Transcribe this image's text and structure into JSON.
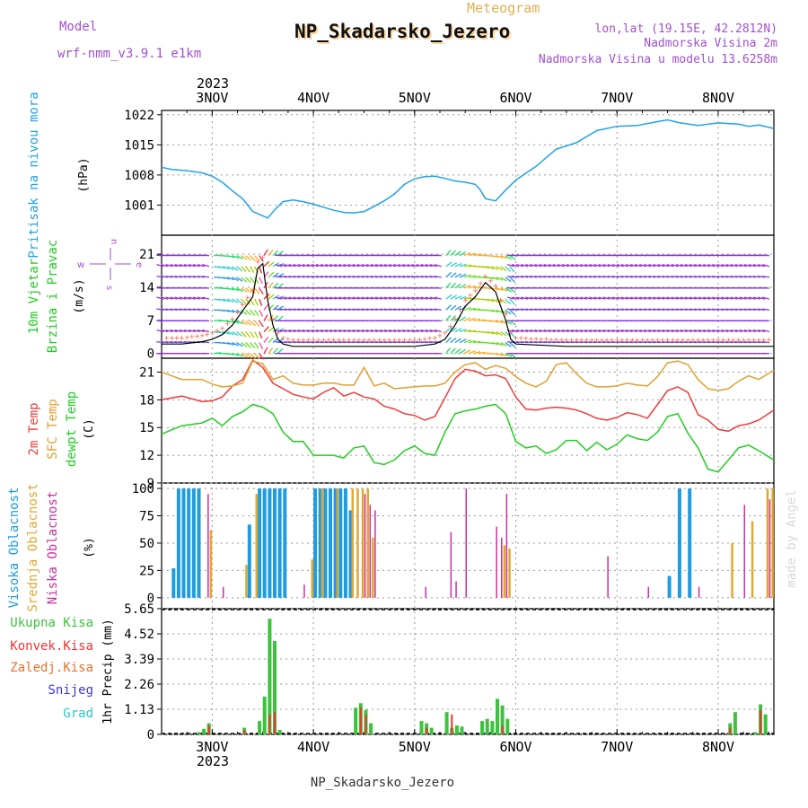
{
  "header": {
    "title": "NP_Skadarsko_Jezero",
    "subtitle": "Meteogram",
    "model_label": "Model",
    "model_name": "wrf-nmm_v3.9.1 e1km",
    "coords": "lon,lat (19.15E, 42.2812N)",
    "altitude": "Nadmorska Visina 2m",
    "model_altitude": "Nadmorska Visina u modelu 13.6258m",
    "watermark": "made by Angel",
    "footer": "NP_Skadarsko_Jezero"
  },
  "colors": {
    "pressure": "#22a2e8",
    "wind_black": "#000000",
    "t2m": "#ef3b3b",
    "sfc": "#e0a030",
    "dewpt": "#22cc22",
    "high_cloud": "#1f9be0",
    "mid_cloud": "#e0a830",
    "low_cloud": "#cc2f9e",
    "total_precip": "#3cc23c",
    "conv_precip": "#ee3333",
    "frz_precip": "#e8732a",
    "snow": "#3a3acc",
    "hail": "#28c8c8",
    "purple_label": "#a050d0",
    "gold_label": "#e0b050"
  },
  "x_axis": {
    "year": "2023",
    "ticks": [
      {
        "day": 3,
        "label": "3NOV"
      },
      {
        "day": 4,
        "label": "4NOV"
      },
      {
        "day": 5,
        "label": "5NOV"
      },
      {
        "day": 6,
        "label": "6NOV"
      },
      {
        "day": 7,
        "label": "7NOV"
      },
      {
        "day": 8,
        "label": "8NOV"
      }
    ]
  },
  "panels": {
    "pressure": {
      "ylabel_left": "Pritisak na nivou mora",
      "unit": "(hPa)",
      "ticks": [
        1001,
        1008,
        1015,
        1022
      ]
    },
    "wind": {
      "ylabel_left_1": "10m Vjetar",
      "ylabel_left_2": "Brzina i Pravac",
      "unit": "(m/s)",
      "ticks": [
        0,
        7,
        14,
        21
      ],
      "compass_w": "w",
      "compass_n": "n",
      "compass_e": "e",
      "compass_s": "s"
    },
    "temperature": {
      "label_t2m": "2m Temp",
      "label_sfc": "SFC Temp",
      "label_dew": "dewpt Temp",
      "unit": "(C)",
      "ticks": [
        9,
        12,
        15,
        18,
        21
      ]
    },
    "clouds": {
      "label_high": "Visoka Oblacnost",
      "label_mid": "Srednja Oblacnost",
      "label_low": "Niska Oblacnost",
      "unit": "(%)",
      "ticks": [
        0,
        25,
        50,
        75,
        100
      ]
    },
    "precip": {
      "label_total": "Ukupna Kisa",
      "label_conv": "Konvek.Kisa",
      "label_frz": "Zaledj.Kisa",
      "label_snow": "Snijeg",
      "label_hail": "Grad",
      "unit": "1hr Precip (mm)",
      "ticks": [
        0,
        1.13,
        2.26,
        3.39,
        4.52,
        5.65
      ]
    }
  },
  "chart_data": [
    {
      "type": "line",
      "name": "pressure",
      "x_unit": "day of November 2023",
      "xlim": [
        2.5,
        8.55
      ],
      "ylim": [
        994,
        1023
      ],
      "x": [
        2.5,
        2.6,
        2.75,
        2.9,
        3.0,
        3.1,
        3.2,
        3.3,
        3.4,
        3.5,
        3.55,
        3.62,
        3.7,
        3.8,
        3.9,
        4.0,
        4.1,
        4.2,
        4.3,
        4.4,
        4.5,
        4.6,
        4.7,
        4.8,
        4.9,
        5.0,
        5.1,
        5.2,
        5.3,
        5.4,
        5.5,
        5.6,
        5.65,
        5.7,
        5.8,
        5.9,
        6.0,
        6.2,
        6.4,
        6.6,
        6.8,
        7.0,
        7.2,
        7.4,
        7.5,
        7.6,
        7.8,
        8.0,
        8.2,
        8.3,
        8.4,
        8.55
      ],
      "values": [
        1009.8,
        1009.3,
        1009.0,
        1008.5,
        1007.7,
        1006.3,
        1004.3,
        1002.5,
        999.5,
        998.5,
        998.0,
        1000.0,
        1001.8,
        1002.2,
        1001.8,
        1001.2,
        1000.5,
        999.8,
        999.3,
        999.2,
        999.5,
        1000.7,
        1002.0,
        1003.6,
        1005.8,
        1007.1,
        1007.6,
        1007.7,
        1007.2,
        1006.6,
        1006.3,
        1005.8,
        1004.5,
        1002.5,
        1002.0,
        1004.5,
        1006.8,
        1010.0,
        1014.0,
        1015.5,
        1018.3,
        1019.3,
        1019.5,
        1020.4,
        1020.8,
        1020.2,
        1019.5,
        1020.1,
        1019.8,
        1019.3,
        1019.6,
        1018.8
      ]
    },
    {
      "type": "line",
      "name": "wind_speed",
      "x_unit": "day of November 2023",
      "ylim": [
        -1,
        25
      ],
      "x": [
        2.5,
        2.7,
        2.9,
        3.0,
        3.1,
        3.2,
        3.3,
        3.4,
        3.45,
        3.5,
        3.55,
        3.6,
        3.65,
        3.7,
        3.8,
        3.9,
        4.0,
        4.5,
        5.0,
        5.2,
        5.3,
        5.4,
        5.5,
        5.6,
        5.7,
        5.8,
        5.85,
        5.9,
        5.95,
        6.0,
        6.5,
        7.0,
        7.5,
        8.0,
        8.55
      ],
      "values": [
        2,
        2,
        2.5,
        3,
        4,
        6,
        9,
        12,
        18,
        19,
        11,
        6,
        3,
        2,
        1.5,
        1.5,
        1.5,
        1.5,
        1.5,
        2,
        3,
        6,
        10,
        12,
        15,
        13,
        10,
        7,
        3,
        2,
        1.5,
        1.5,
        1.5,
        1.5,
        1.5
      ]
    },
    {
      "type": "line",
      "name": "temperature",
      "x_unit": "day of November 2023",
      "ylim": [
        9,
        22.5
      ],
      "x": [
        2.5,
        2.7,
        2.9,
        3.0,
        3.1,
        3.2,
        3.3,
        3.4,
        3.5,
        3.6,
        3.7,
        3.8,
        3.9,
        4.0,
        4.1,
        4.2,
        4.3,
        4.4,
        4.5,
        4.6,
        4.7,
        4.8,
        4.9,
        5.0,
        5.1,
        5.2,
        5.3,
        5.4,
        5.5,
        5.6,
        5.7,
        5.8,
        5.9,
        6.0,
        6.1,
        6.2,
        6.3,
        6.4,
        6.5,
        6.6,
        6.7,
        6.8,
        6.9,
        7.0,
        7.1,
        7.2,
        7.3,
        7.4,
        7.5,
        7.6,
        7.7,
        7.8,
        7.9,
        8.0,
        8.1,
        8.2,
        8.3,
        8.4,
        8.55
      ],
      "series": [
        {
          "name": "2m Temp",
          "values": [
            18.0,
            18.4,
            17.8,
            17.9,
            18.3,
            19.5,
            20.2,
            22.3,
            21.5,
            19.8,
            19.2,
            18.6,
            18.3,
            18.1,
            18.8,
            19.3,
            18.4,
            18.8,
            18.3,
            18.1,
            17.3,
            17.0,
            16.5,
            16.3,
            15.8,
            16.2,
            18.2,
            20.3,
            21.3,
            21.1,
            20.6,
            20.7,
            20.3,
            18.3,
            17.0,
            16.9,
            17.1,
            17.2,
            17.1,
            16.9,
            16.5,
            16.0,
            15.8,
            16.1,
            16.6,
            16.4,
            16.0,
            17.5,
            19.0,
            19.4,
            18.8,
            16.4,
            15.8,
            14.8,
            14.6,
            15.2,
            15.4,
            15.8,
            16.9
          ]
        },
        {
          "name": "SFC Temp",
          "values": [
            21.0,
            20.2,
            20.2,
            19.7,
            19.4,
            19.5,
            19.8,
            22.2,
            21.9,
            20.2,
            20.6,
            19.8,
            19.6,
            19.6,
            19.8,
            19.8,
            19.6,
            19.6,
            21.5,
            19.5,
            19.8,
            19.2,
            19.3,
            19.4,
            19.5,
            19.5,
            19.8,
            21.0,
            21.8,
            22.0,
            21.3,
            21.7,
            21.4,
            20.5,
            19.8,
            19.4,
            20.0,
            21.8,
            22.0,
            20.8,
            19.8,
            19.4,
            19.4,
            19.5,
            19.8,
            19.6,
            19.5,
            20.5,
            22.0,
            22.2,
            21.8,
            20.2,
            19.2,
            19.0,
            19.2,
            20.0,
            20.6,
            20.2,
            21.2
          ]
        },
        {
          "name": "dewpt Temp",
          "values": [
            14.3,
            15.2,
            15.5,
            16.0,
            15.2,
            16.2,
            16.7,
            17.5,
            17.2,
            16.5,
            14.5,
            13.5,
            13.5,
            12.0,
            12.0,
            12.0,
            11.7,
            12.8,
            13.0,
            11.2,
            11.0,
            11.5,
            12.5,
            13.0,
            12.2,
            12.0,
            14.5,
            16.5,
            16.8,
            17.0,
            17.3,
            17.5,
            16.5,
            13.5,
            12.8,
            13.0,
            12.2,
            12.6,
            13.6,
            13.6,
            12.5,
            13.4,
            12.6,
            13.2,
            14.2,
            13.8,
            13.6,
            14.5,
            16.2,
            16.5,
            14.4,
            12.8,
            10.5,
            10.2,
            11.5,
            12.8,
            13.1,
            12.5,
            11.5
          ]
        }
      ]
    },
    {
      "type": "bar",
      "name": "cloud_cover_percent",
      "x_unit": "day of November 2023",
      "ylim": [
        0,
        100
      ],
      "series": [
        {
          "name": "Visoka Oblacnost",
          "x": [
            2.6,
            2.65,
            2.7,
            2.75,
            2.8,
            2.85,
            3.35,
            3.45,
            3.5,
            3.55,
            3.6,
            3.65,
            3.7,
            4.0,
            4.05,
            4.1,
            4.15,
            4.2,
            4.25,
            4.3,
            4.35,
            7.5,
            7.6,
            7.7
          ],
          "values": [
            27,
            100,
            100,
            100,
            100,
            100,
            67,
            100,
            100,
            100,
            100,
            100,
            100,
            100,
            100,
            100,
            100,
            100,
            100,
            100,
            80,
            20,
            100,
            100
          ]
        },
        {
          "name": "Srednja Oblacnost",
          "x": [
            2.95,
            3.3,
            3.4,
            3.95,
            4.05,
            4.2,
            4.35,
            4.4,
            4.45,
            4.5,
            4.55,
            5.85,
            5.9,
            8.1,
            8.3,
            8.45,
            8.5
          ],
          "values": [
            62,
            30,
            95,
            35,
            100,
            100,
            100,
            100,
            100,
            100,
            55,
            48,
            45,
            50,
            70,
            100,
            100
          ]
        },
        {
          "name": "Niska Oblacnost",
          "x": [
            2.9,
            3.05,
            3.85,
            4.45,
            4.5,
            4.55,
            5.05,
            5.3,
            5.35,
            5.45,
            5.75,
            5.8,
            5.85,
            6.85,
            7.25,
            7.75,
            8.2,
            8.45
          ],
          "values": [
            95,
            10,
            12,
            95,
            85,
            80,
            10,
            60,
            15,
            100,
            65,
            55,
            95,
            38,
            10,
            10,
            85,
            90
          ]
        }
      ]
    },
    {
      "type": "bar",
      "name": "precip_1hr_mm",
      "x_unit": "day of November 2023",
      "ylim": [
        0,
        5.65
      ],
      "series": [
        {
          "name": "Ukupna Kisa",
          "x": [
            2.85,
            2.9,
            2.95,
            3.3,
            3.45,
            3.5,
            3.55,
            3.6,
            3.65,
            4.4,
            4.45,
            4.5,
            4.55,
            5.05,
            5.1,
            5.15,
            5.3,
            5.35,
            5.4,
            5.45,
            5.65,
            5.7,
            5.75,
            5.8,
            5.85,
            5.9,
            8.1,
            8.15,
            8.35,
            8.4,
            8.45
          ],
          "values": [
            0.1,
            0.25,
            0.5,
            0.3,
            0.6,
            1.7,
            5.2,
            4.2,
            0.2,
            1.2,
            1.4,
            1.1,
            0.5,
            0.6,
            0.5,
            0.3,
            1.0,
            0.3,
            0.4,
            0.35,
            0.6,
            0.7,
            0.6,
            1.6,
            1.3,
            0.7,
            0.5,
            1.0,
            0.1,
            1.35,
            0.9
          ]
        },
        {
          "name": "Konvek.Kisa",
          "x": [
            2.95,
            3.3,
            3.55,
            3.6,
            4.45,
            4.5,
            5.1,
            5.35,
            5.85,
            8.1,
            8.4
          ],
          "values": [
            0.4,
            0.2,
            0.9,
            1.0,
            1.2,
            0.9,
            0.3,
            0.9,
            0.4,
            0.3,
            1.1
          ]
        }
      ]
    }
  ]
}
